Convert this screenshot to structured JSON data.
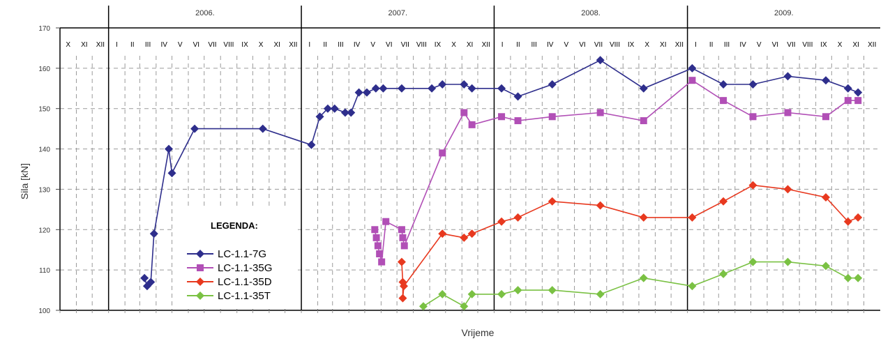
{
  "chart_data": {
    "type": "line",
    "xlabel": "Vrijeme",
    "ylabel": "Sila [kN]",
    "ylim": [
      100,
      170
    ],
    "yticks": [
      100,
      110,
      120,
      130,
      140,
      150,
      160,
      170
    ],
    "grid": true,
    "x_axis_type": "date",
    "x_range": [
      "2005-10-01",
      "2010-01-01"
    ],
    "years": [
      "2006.",
      "2007.",
      "2008.",
      "2009."
    ],
    "months": [
      {
        "label": "X",
        "date": "2005-10-01"
      },
      {
        "label": "XI",
        "date": "2005-11-01"
      },
      {
        "label": "XII",
        "date": "2005-12-01"
      },
      {
        "label": "I",
        "date": "2006-01-01"
      },
      {
        "label": "II",
        "date": "2006-02-01"
      },
      {
        "label": "III",
        "date": "2006-03-01"
      },
      {
        "label": "IV",
        "date": "2006-04-01"
      },
      {
        "label": "V",
        "date": "2006-05-01"
      },
      {
        "label": "VI",
        "date": "2006-06-01"
      },
      {
        "label": "VII",
        "date": "2006-07-01"
      },
      {
        "label": "VIII",
        "date": "2006-08-01"
      },
      {
        "label": "IX",
        "date": "2006-09-01"
      },
      {
        "label": "X",
        "date": "2006-10-01"
      },
      {
        "label": "XI",
        "date": "2006-11-01"
      },
      {
        "label": "XII",
        "date": "2006-12-01"
      },
      {
        "label": "I",
        "date": "2007-01-01"
      },
      {
        "label": "II",
        "date": "2007-02-01"
      },
      {
        "label": "III",
        "date": "2007-03-01"
      },
      {
        "label": "IV",
        "date": "2007-04-01"
      },
      {
        "label": "V",
        "date": "2007-05-01"
      },
      {
        "label": "VI",
        "date": "2007-06-01"
      },
      {
        "label": "VII",
        "date": "2007-07-01"
      },
      {
        "label": "VIII",
        "date": "2007-08-01"
      },
      {
        "label": "IX",
        "date": "2007-09-01"
      },
      {
        "label": "X",
        "date": "2007-10-01"
      },
      {
        "label": "XI",
        "date": "2007-11-01"
      },
      {
        "label": "XII",
        "date": "2007-12-01"
      },
      {
        "label": "I",
        "date": "2008-01-01"
      },
      {
        "label": "II",
        "date": "2008-02-01"
      },
      {
        "label": "III",
        "date": "2008-03-01"
      },
      {
        "label": "IV",
        "date": "2008-04-01"
      },
      {
        "label": "V",
        "date": "2008-05-01"
      },
      {
        "label": "VI",
        "date": "2008-06-01"
      },
      {
        "label": "VII",
        "date": "2008-07-01"
      },
      {
        "label": "VIII",
        "date": "2008-08-01"
      },
      {
        "label": "IX",
        "date": "2008-09-01"
      },
      {
        "label": "X",
        "date": "2008-10-01"
      },
      {
        "label": "XI",
        "date": "2008-11-01"
      },
      {
        "label": "XII",
        "date": "2008-12-01"
      },
      {
        "label": "I",
        "date": "2009-01-01"
      },
      {
        "label": "II",
        "date": "2009-02-01"
      },
      {
        "label": "III",
        "date": "2009-03-01"
      },
      {
        "label": "IV",
        "date": "2009-04-01"
      },
      {
        "label": "V",
        "date": "2009-05-01"
      },
      {
        "label": "VI",
        "date": "2009-06-01"
      },
      {
        "label": "VII",
        "date": "2009-07-01"
      },
      {
        "label": "VIII",
        "date": "2009-08-01"
      },
      {
        "label": "IX",
        "date": "2009-09-01"
      },
      {
        "label": "X",
        "date": "2009-10-01"
      },
      {
        "label": "XI",
        "date": "2009-11-01"
      },
      {
        "label": "XII",
        "date": "2009-12-01"
      }
    ],
    "legend": {
      "title": "LEGENDA:",
      "placement": "bottom-left"
    },
    "series": [
      {
        "name": "LC-1.1-7G",
        "color": "#2e2e8c",
        "marker": "diamond",
        "points": [
          {
            "x": "2006-03-10",
            "y": 108
          },
          {
            "x": "2006-03-15",
            "y": 106
          },
          {
            "x": "2006-03-22",
            "y": 107
          },
          {
            "x": "2006-03-28",
            "y": 119
          },
          {
            "x": "2006-04-25",
            "y": 140
          },
          {
            "x": "2006-05-01",
            "y": 134
          },
          {
            "x": "2006-06-13",
            "y": 145
          },
          {
            "x": "2006-10-20",
            "y": 145
          },
          {
            "x": "2007-01-20",
            "y": 141
          },
          {
            "x": "2007-02-05",
            "y": 148
          },
          {
            "x": "2007-02-20",
            "y": 150
          },
          {
            "x": "2007-03-05",
            "y": 150
          },
          {
            "x": "2007-03-25",
            "y": 149
          },
          {
            "x": "2007-04-05",
            "y": 149
          },
          {
            "x": "2007-04-20",
            "y": 154
          },
          {
            "x": "2007-05-05",
            "y": 154
          },
          {
            "x": "2007-05-22",
            "y": 155
          },
          {
            "x": "2007-06-05",
            "y": 155
          },
          {
            "x": "2007-07-10",
            "y": 155
          },
          {
            "x": "2007-09-05",
            "y": 155
          },
          {
            "x": "2007-09-25",
            "y": 156
          },
          {
            "x": "2007-11-05",
            "y": 156
          },
          {
            "x": "2007-11-20",
            "y": 155
          },
          {
            "x": "2008-01-15",
            "y": 155
          },
          {
            "x": "2008-02-15",
            "y": 153
          },
          {
            "x": "2008-04-20",
            "y": 156
          },
          {
            "x": "2008-07-20",
            "y": 162
          },
          {
            "x": "2008-10-10",
            "y": 155
          },
          {
            "x": "2009-01-10",
            "y": 160
          },
          {
            "x": "2009-03-10",
            "y": 156
          },
          {
            "x": "2009-05-05",
            "y": 156
          },
          {
            "x": "2009-07-10",
            "y": 158
          },
          {
            "x": "2009-09-20",
            "y": 157
          },
          {
            "x": "2009-11-01",
            "y": 155
          },
          {
            "x": "2009-11-20",
            "y": 154
          }
        ]
      },
      {
        "name": "LC-1.1-35G",
        "color": "#b14fb6",
        "marker": "square",
        "points": [
          {
            "x": "2007-05-20",
            "y": 120
          },
          {
            "x": "2007-05-23",
            "y": 118
          },
          {
            "x": "2007-05-26",
            "y": 116
          },
          {
            "x": "2007-05-29",
            "y": 114
          },
          {
            "x": "2007-06-02",
            "y": 112
          },
          {
            "x": "2007-06-10",
            "y": 122
          },
          {
            "x": "2007-07-10",
            "y": 120
          },
          {
            "x": "2007-07-12",
            "y": 118
          },
          {
            "x": "2007-07-15",
            "y": 116
          },
          {
            "x": "2007-09-25",
            "y": 139
          },
          {
            "x": "2007-11-05",
            "y": 149
          },
          {
            "x": "2007-11-20",
            "y": 146
          },
          {
            "x": "2008-01-15",
            "y": 148
          },
          {
            "x": "2008-02-15",
            "y": 147
          },
          {
            "x": "2008-04-20",
            "y": 148
          },
          {
            "x": "2008-07-20",
            "y": 149
          },
          {
            "x": "2008-10-10",
            "y": 147
          },
          {
            "x": "2009-01-10",
            "y": 157
          },
          {
            "x": "2009-03-10",
            "y": 152
          },
          {
            "x": "2009-05-05",
            "y": 148
          },
          {
            "x": "2009-07-10",
            "y": 149
          },
          {
            "x": "2009-09-20",
            "y": 148
          },
          {
            "x": "2009-11-01",
            "y": 152
          },
          {
            "x": "2009-11-20",
            "y": 152
          }
        ]
      },
      {
        "name": "LC-1.1-35D",
        "color": "#e8391f",
        "marker": "diamond",
        "points": [
          {
            "x": "2007-07-10",
            "y": 112
          },
          {
            "x": "2007-07-12",
            "y": 107
          },
          {
            "x": "2007-07-12",
            "y": 103
          },
          {
            "x": "2007-07-14",
            "y": 106
          },
          {
            "x": "2007-09-25",
            "y": 119
          },
          {
            "x": "2007-11-05",
            "y": 118
          },
          {
            "x": "2007-11-20",
            "y": 119
          },
          {
            "x": "2008-01-15",
            "y": 122
          },
          {
            "x": "2008-02-15",
            "y": 123
          },
          {
            "x": "2008-04-20",
            "y": 127
          },
          {
            "x": "2008-07-20",
            "y": 126
          },
          {
            "x": "2008-10-10",
            "y": 123
          },
          {
            "x": "2009-01-10",
            "y": 123
          },
          {
            "x": "2009-03-10",
            "y": 127
          },
          {
            "x": "2009-05-05",
            "y": 131
          },
          {
            "x": "2009-07-10",
            "y": 130
          },
          {
            "x": "2009-09-20",
            "y": 128
          },
          {
            "x": "2009-11-01",
            "y": 122
          },
          {
            "x": "2009-11-20",
            "y": 123
          }
        ]
      },
      {
        "name": "LC-1.1-35T",
        "color": "#7ac143",
        "marker": "diamond",
        "points": [
          {
            "x": "2007-08-20",
            "y": 101
          },
          {
            "x": "2007-09-25",
            "y": 104
          },
          {
            "x": "2007-11-05",
            "y": 101
          },
          {
            "x": "2007-11-20",
            "y": 104
          },
          {
            "x": "2008-01-15",
            "y": 104
          },
          {
            "x": "2008-02-15",
            "y": 105
          },
          {
            "x": "2008-04-20",
            "y": 105
          },
          {
            "x": "2008-07-20",
            "y": 104
          },
          {
            "x": "2008-10-10",
            "y": 108
          },
          {
            "x": "2009-01-10",
            "y": 106
          },
          {
            "x": "2009-03-10",
            "y": 109
          },
          {
            "x": "2009-05-05",
            "y": 112
          },
          {
            "x": "2009-07-10",
            "y": 112
          },
          {
            "x": "2009-09-20",
            "y": 111
          },
          {
            "x": "2009-11-01",
            "y": 108
          },
          {
            "x": "2009-11-20",
            "y": 108
          }
        ]
      }
    ]
  }
}
